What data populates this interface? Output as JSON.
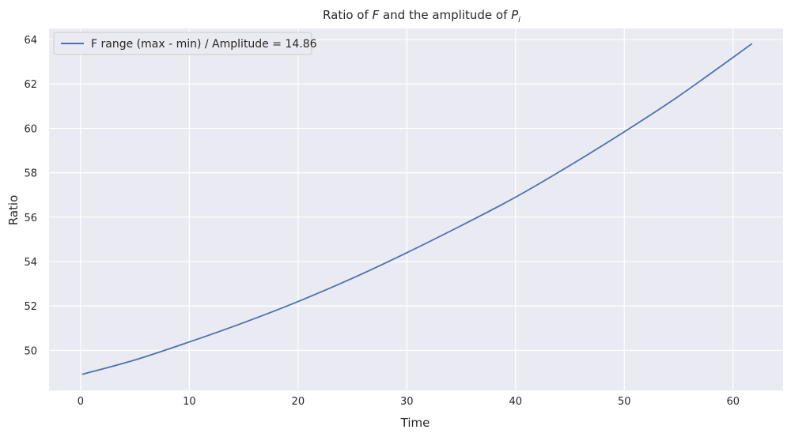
{
  "chart_data": {
    "type": "line",
    "title": "Ratio of F and the amplitude of P",
    "title_parts": {
      "prefix": "Ratio of ",
      "var_f": "F",
      "middle": " and the amplitude of ",
      "var_p": "P",
      "var_p_sub": "i"
    },
    "xlabel": "Time",
    "ylabel": "Ratio",
    "xlim": [
      -2.9,
      64.6
    ],
    "ylim": [
      48.2,
      64.5
    ],
    "xticks": [
      0,
      10,
      20,
      30,
      40,
      50,
      60
    ],
    "yticks": [
      50,
      52,
      54,
      56,
      58,
      60,
      62,
      64
    ],
    "grid": true,
    "legend_position": "top-left",
    "series": [
      {
        "name": "F range (max - min) / Amplitude = 14.86",
        "color": "#4c72b0",
        "x": [
          0.2,
          5,
          10,
          15,
          20,
          25,
          30,
          35,
          40,
          45,
          50,
          55,
          61.7
        ],
        "y": [
          48.93,
          49.57,
          50.38,
          51.25,
          52.2,
          53.25,
          54.4,
          55.62,
          56.9,
          58.33,
          59.85,
          61.45,
          63.8
        ]
      }
    ]
  },
  "style": {
    "plot_background": "#eaeaf2",
    "grid_color": "#ffffff",
    "text_color": "#262626"
  }
}
